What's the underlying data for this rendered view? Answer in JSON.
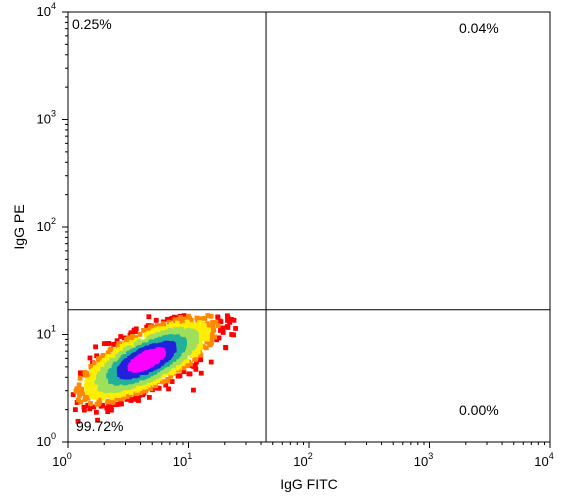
{
  "chart_data": {
    "type": "scatter",
    "subtype": "flow-cytometry-density-quadrant-plot",
    "xlabel": "IgG FITC",
    "ylabel": "IgG PE",
    "x_scale": "log",
    "y_scale": "log",
    "xlim": [
      1,
      10000
    ],
    "ylim": [
      1,
      10000
    ],
    "x_ticks": [
      {
        "base": "10",
        "exp": "0",
        "value": 1
      },
      {
        "base": "10",
        "exp": "1",
        "value": 10
      },
      {
        "base": "10",
        "exp": "2",
        "value": 100
      },
      {
        "base": "10",
        "exp": "3",
        "value": 1000
      },
      {
        "base": "10",
        "exp": "4",
        "value": 10000
      }
    ],
    "y_ticks": [
      {
        "base": "10",
        "exp": "0",
        "value": 1
      },
      {
        "base": "10",
        "exp": "1",
        "value": 10
      },
      {
        "base": "10",
        "exp": "2",
        "value": 100
      },
      {
        "base": "10",
        "exp": "3",
        "value": 1000
      },
      {
        "base": "10",
        "exp": "4",
        "value": 10000
      }
    ],
    "gates": {
      "x": 44,
      "y": 17
    },
    "quadrants": {
      "upper_left": "0.25%",
      "upper_right": "0.04%",
      "lower_left": "99.72%",
      "lower_right": "0.00%"
    },
    "population": {
      "center": [
        4.5,
        5.8
      ],
      "log_spread": [
        0.26,
        0.18
      ],
      "x_range": [
        1.1,
        25
      ],
      "y_range": [
        1.3,
        15
      ]
    },
    "density_colors": [
      "#ff0000",
      "#ff8800",
      "#ffee00",
      "#9fe05a",
      "#22b09a",
      "#2222dd",
      "#ff00ff"
    ],
    "grid": false
  }
}
